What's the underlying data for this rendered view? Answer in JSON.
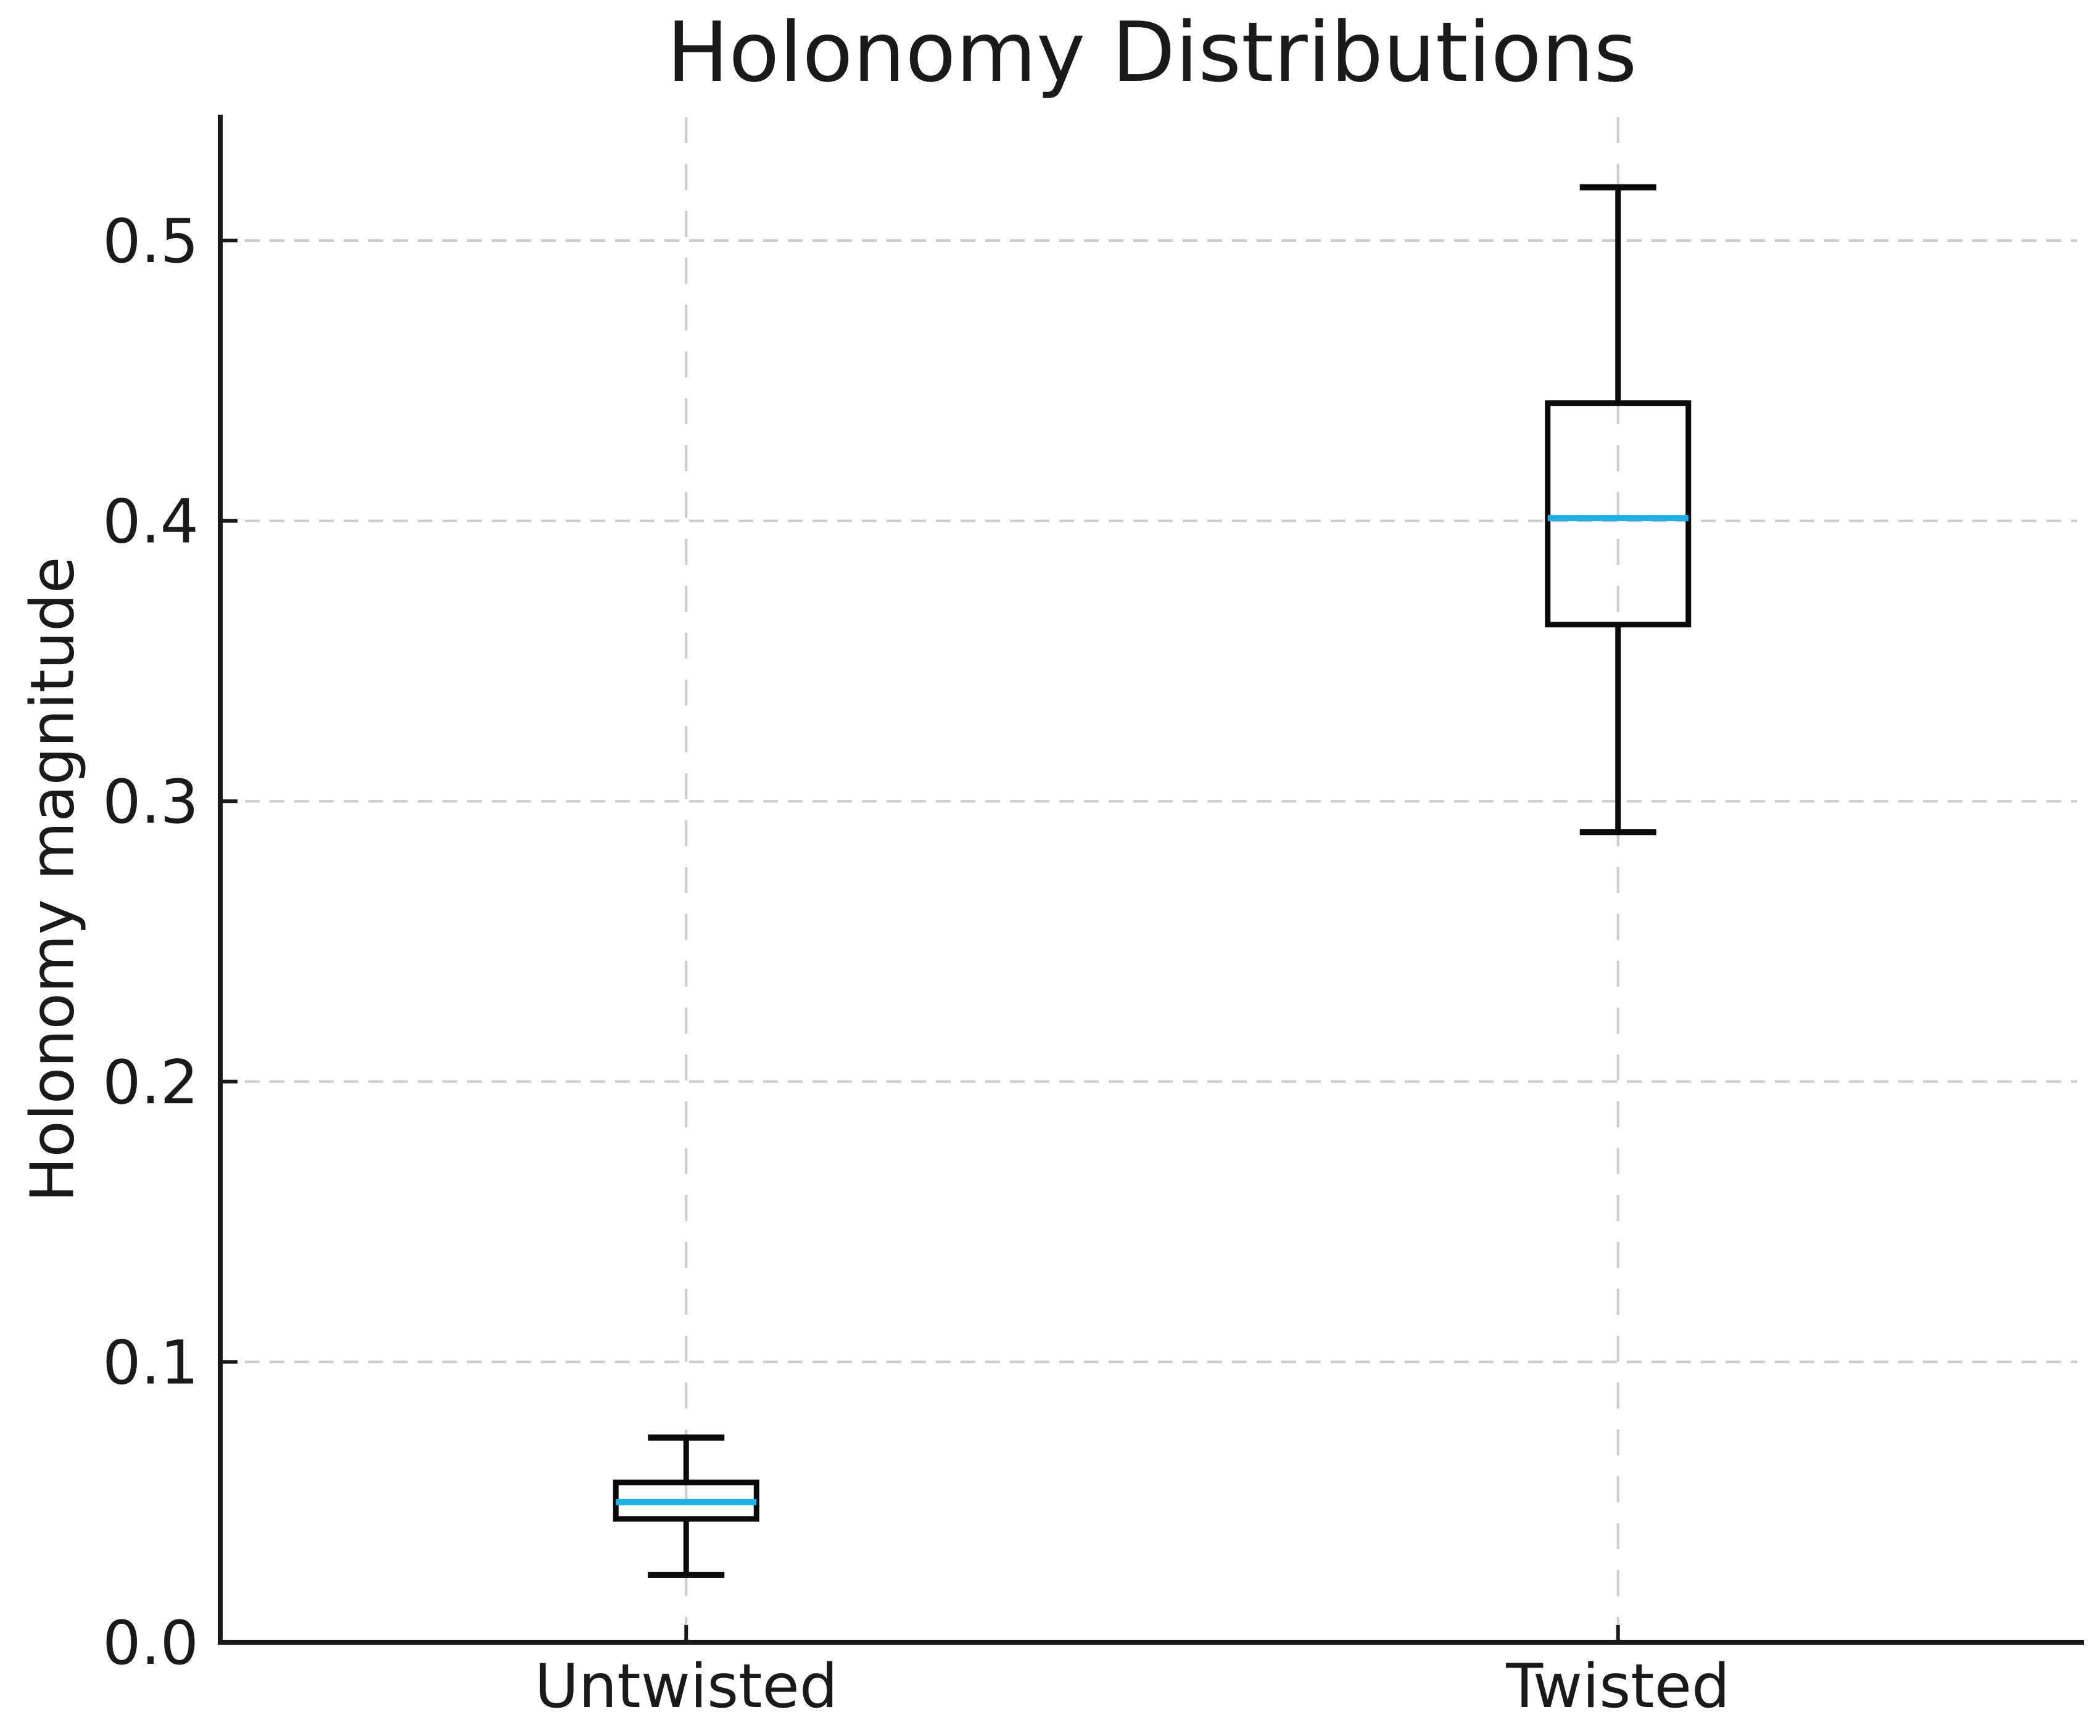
{
  "chart_data": {
    "type": "box",
    "title": "Holonomy Distributions",
    "ylabel": "Holonomy magnitude",
    "xlabel": "",
    "categories": [
      "Untwisted",
      "Twisted"
    ],
    "series": [
      {
        "name": "Untwisted",
        "whisker_low": 0.024,
        "q1": 0.044,
        "median": 0.05,
        "q3": 0.057,
        "whisker_high": 0.073
      },
      {
        "name": "Twisted",
        "whisker_low": 0.289,
        "q1": 0.363,
        "median": 0.401,
        "q3": 0.442,
        "whisker_high": 0.519
      }
    ],
    "y_ticks": [
      0.0,
      0.1,
      0.2,
      0.3,
      0.4,
      0.5
    ],
    "y_tick_labels": [
      "0.0",
      "0.1",
      "0.2",
      "0.3",
      "0.4",
      "0.5"
    ],
    "ylim": [
      0,
      0.544
    ],
    "grid": true,
    "grid_style": "dashed",
    "legend_position": "none",
    "colors": {
      "median": "#1eafe6",
      "box": "#0b0b0b",
      "whisker": "#0b0b0b",
      "grid": "#cccccc",
      "spine": "#1a1a1a",
      "text": "#1a1a1a",
      "background": "#ffffff"
    }
  }
}
